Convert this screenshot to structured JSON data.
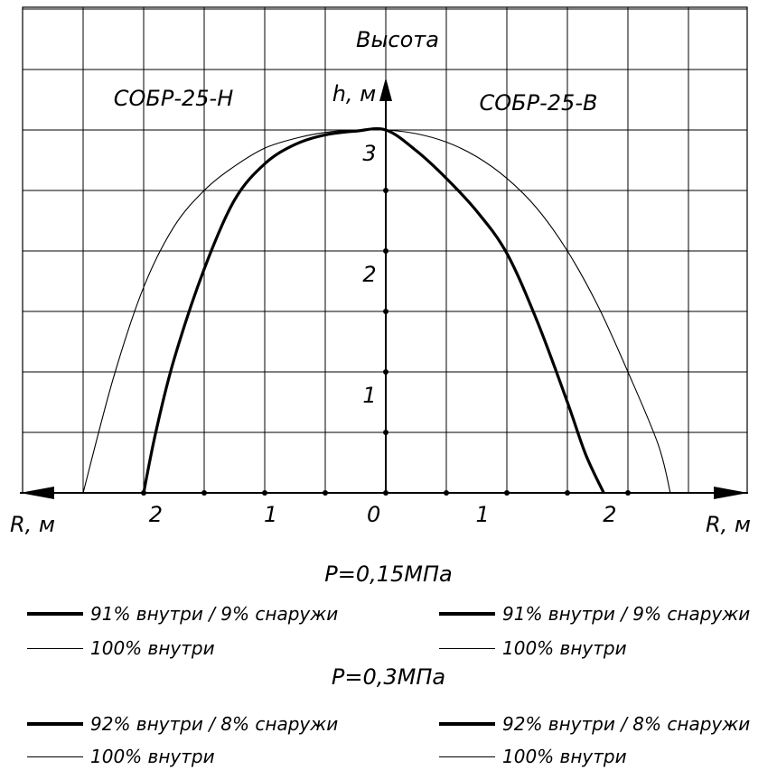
{
  "chart_data": {
    "type": "line",
    "title": "Высота",
    "ylabel": "h, м",
    "xlabel_left": "R, м",
    "xlabel_right": "R, м",
    "xlim": [
      -2.5,
      2.5
    ],
    "ylim": [
      0,
      4
    ],
    "grid": true,
    "x_tick_labels": [
      "2",
      "1",
      "0",
      "1",
      "2"
    ],
    "y_tick_labels": [
      "1",
      "2",
      "3"
    ],
    "region_labels": {
      "left": "СОБР-25-Н",
      "right": "СОБР-25-В"
    },
    "series": [
      {
        "name": "91% внутри / 9% снаружи",
        "width": "thick",
        "x": [
          -2.0,
          -1.9,
          -1.75,
          -1.5,
          -1.25,
          -1.0,
          -0.75,
          -0.5,
          -0.25,
          0.0,
          0.25,
          0.5,
          0.75,
          1.0,
          1.25,
          1.5,
          1.65,
          1.8
        ],
        "y": [
          0.0,
          0.5,
          1.1,
          1.85,
          2.42,
          2.72,
          2.88,
          2.96,
          2.99,
          3.0,
          2.83,
          2.6,
          2.33,
          1.98,
          1.42,
          0.75,
          0.32,
          0.0
        ]
      },
      {
        "name": "100% внутри",
        "width": "thin",
        "x": [
          -2.5,
          -2.25,
          -2.0,
          -1.75,
          -1.5,
          -1.25,
          -1.0,
          -0.75,
          -0.5,
          -0.25,
          0.0,
          0.25,
          0.5,
          0.75,
          1.0,
          1.25,
          1.5,
          1.75,
          2.0,
          2.25,
          2.35
        ],
        "y": [
          0.0,
          0.95,
          1.7,
          2.2,
          2.5,
          2.7,
          2.85,
          2.93,
          2.98,
          3.0,
          3.0,
          2.97,
          2.9,
          2.78,
          2.6,
          2.35,
          2.0,
          1.55,
          1.0,
          0.4,
          0.0
        ]
      }
    ]
  },
  "legend": {
    "group1_title": "Р=0,15МПа",
    "group2_title": "Р=0,3МПа",
    "g1_thick_left": "91% внутри / 9% снаружи",
    "g1_thick_right": "91% внутри / 9% снаружи",
    "g1_thin_left": "100% внутри",
    "g1_thin_right": "100% внутри",
    "g2_thick_left": "92% внутри / 8% снаружи",
    "g2_thick_right": "92% внутри / 8% снаружи",
    "g2_thin_left": "100% внутри",
    "g2_thin_right": "100% внутри"
  }
}
